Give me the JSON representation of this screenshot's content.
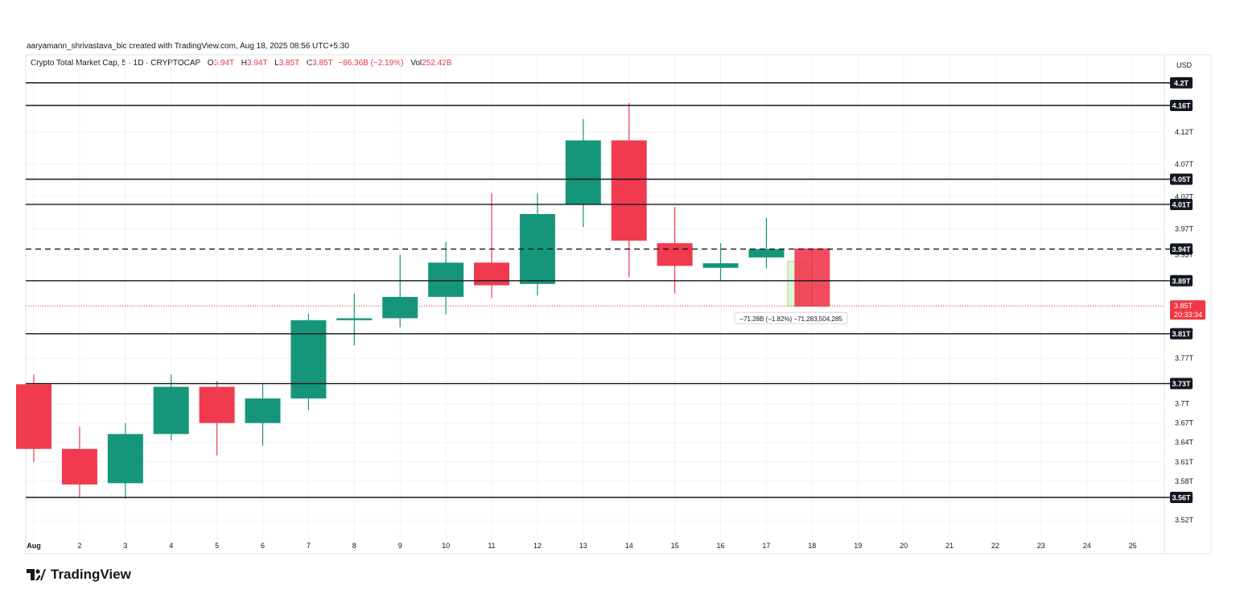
{
  "credit": "aaryamann_shrivastava_bic created with TradingView.com, Aug 18, 2025 08:56 UTC+5:30",
  "legend": {
    "symbol": "Crypto Total Market Cap, 5 · 1D · CRYPTOCAP",
    "open_label": "O",
    "open_value": "3.94T",
    "high_label": "H",
    "high_value": "3.94T",
    "low_label": "L",
    "low_value": "3.85T",
    "close_label": "C",
    "close_value": "3.85T",
    "change": "−86.36B (−2.19%)",
    "vol_label": "Vol",
    "vol_value": "252.42B"
  },
  "currency": "USD",
  "brand": "TradingView",
  "colors": {
    "up": "#15967a",
    "down": "#f03a4e",
    "line": "#131722",
    "grid": "#f0f3fa",
    "last": "#f23645"
  },
  "chart_data": {
    "type": "candlestick",
    "x_labels": [
      "Aug",
      "2",
      "3",
      "4",
      "5",
      "6",
      "7",
      "8",
      "9",
      "10",
      "11",
      "12",
      "13",
      "14",
      "15",
      "16",
      "17",
      "18",
      "19",
      "20",
      "21",
      "22",
      "23",
      "24",
      "25"
    ],
    "y_ticks": [
      "4.12T",
      "4.07T",
      "4.02T",
      "3.97T",
      "3.93T",
      "3.85T",
      "3.81T",
      "3.77T",
      "3.7T",
      "3.67T",
      "3.64T",
      "3.61T",
      "3.58T",
      "3.55T",
      "3.52T"
    ],
    "y_tick_values": [
      4.12,
      4.07,
      4.02,
      3.97,
      3.93,
      3.85,
      3.81,
      3.77,
      3.7,
      3.67,
      3.64,
      3.61,
      3.58,
      3.55,
      3.52
    ],
    "ylim": [
      3.49,
      4.23
    ],
    "candles": [
      {
        "day": "Aug",
        "o": 3.73,
        "h": 3.745,
        "l": 3.61,
        "c": 3.63
      },
      {
        "day": "2",
        "o": 3.63,
        "h": 3.665,
        "l": 3.555,
        "c": 3.575
      },
      {
        "day": "3",
        "o": 3.577,
        "h": 3.67,
        "l": 3.553,
        "c": 3.653
      },
      {
        "day": "4",
        "o": 3.653,
        "h": 3.745,
        "l": 3.643,
        "c": 3.726
      },
      {
        "day": "5",
        "o": 3.726,
        "h": 3.735,
        "l": 3.62,
        "c": 3.67
      },
      {
        "day": "6",
        "o": 3.67,
        "h": 3.73,
        "l": 3.635,
        "c": 3.708
      },
      {
        "day": "7",
        "o": 3.708,
        "h": 3.839,
        "l": 3.69,
        "c": 3.829
      },
      {
        "day": "8",
        "o": 3.829,
        "h": 3.87,
        "l": 3.79,
        "c": 3.832
      },
      {
        "day": "9",
        "o": 3.832,
        "h": 3.93,
        "l": 3.818,
        "c": 3.865
      },
      {
        "day": "10",
        "o": 3.865,
        "h": 3.95,
        "l": 3.838,
        "c": 3.918
      },
      {
        "day": "11",
        "o": 3.918,
        "h": 4.025,
        "l": 3.863,
        "c": 3.883
      },
      {
        "day": "12",
        "o": 3.885,
        "h": 4.025,
        "l": 3.867,
        "c": 3.993
      },
      {
        "day": "13",
        "o": 4.008,
        "h": 4.14,
        "l": 3.973,
        "c": 4.107
      },
      {
        "day": "14",
        "o": 4.107,
        "h": 4.165,
        "l": 3.895,
        "c": 3.952
      },
      {
        "day": "15",
        "o": 3.948,
        "h": 4.004,
        "l": 3.87,
        "c": 3.913
      },
      {
        "day": "16",
        "o": 3.91,
        "h": 3.948,
        "l": 3.89,
        "c": 3.917
      },
      {
        "day": "17",
        "o": 3.926,
        "h": 3.987,
        "l": 3.909,
        "c": 3.939
      },
      {
        "day": "18",
        "o": 3.94,
        "h": 3.94,
        "l": 3.85,
        "c": 3.85
      }
    ],
    "levels": [
      {
        "label": "4.2T",
        "value": 4.196,
        "style": "solid"
      },
      {
        "label": "4.16T",
        "value": 4.161,
        "style": "solid"
      },
      {
        "label": "4.05T",
        "value": 4.047,
        "style": "solid"
      },
      {
        "label": "4.01T",
        "value": 4.008,
        "style": "solid"
      },
      {
        "label": "3.94T",
        "value": 3.939,
        "style": "dashed"
      },
      {
        "label": "3.89T",
        "value": 3.89,
        "style": "solid"
      },
      {
        "label": "3.81T",
        "value": 3.808,
        "style": "solid"
      },
      {
        "label": "3.73T",
        "value": 3.731,
        "style": "solid"
      },
      {
        "label": "3.56T",
        "value": 3.555,
        "style": "solid"
      }
    ],
    "last_price": {
      "label": "3.85T",
      "countdown": "20:33:34",
      "value": 3.851
    },
    "measure": {
      "from_day": "17",
      "to_day": "18",
      "top": 3.92,
      "bottom": 3.851,
      "text": "−71.28B (−1.82%) −71,283,504,285"
    }
  }
}
